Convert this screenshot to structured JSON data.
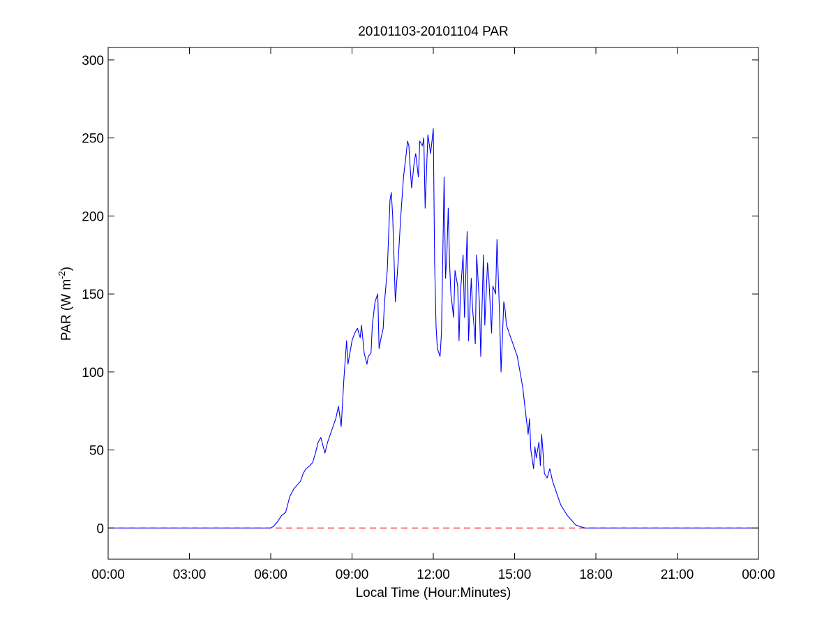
{
  "chart_data": {
    "type": "line",
    "title": "20101103-20101104 PAR",
    "xlabel": "Local Time (Hour:Minutes)",
    "ylabel_main": "PAR (W m",
    "ylabel_sup": "-2",
    "ylabel_close": ")",
    "xlim": [
      0,
      24
    ],
    "ylim": [
      -20,
      308
    ],
    "grid": false,
    "x_ticks": [
      0,
      3,
      6,
      9,
      12,
      15,
      18,
      21,
      24
    ],
    "x_tick_labels": [
      "00:00",
      "03:00",
      "06:00",
      "09:00",
      "12:00",
      "15:00",
      "18:00",
      "21:00",
      "00:00"
    ],
    "y_ticks": [
      0,
      50,
      100,
      150,
      200,
      250,
      300
    ],
    "y_tick_labels": [
      "0",
      "50",
      "100",
      "150",
      "200",
      "250",
      "300"
    ],
    "series": [
      {
        "color": "#0000ff",
        "style": "solid",
        "x": [
          0,
          6.0,
          6.1,
          6.25,
          6.4,
          6.55,
          6.7,
          6.85,
          7.0,
          7.1,
          7.2,
          7.3,
          7.45,
          7.55,
          7.65,
          7.75,
          7.85,
          8.0,
          8.1,
          8.2,
          8.3,
          8.4,
          8.5,
          8.6,
          8.7,
          8.8,
          8.85,
          8.9,
          8.95,
          9.0,
          9.1,
          9.2,
          9.3,
          9.35,
          9.45,
          9.55,
          9.6,
          9.7,
          9.75,
          9.85,
          9.95,
          10.0,
          10.05,
          10.15,
          10.2,
          10.3,
          10.4,
          10.45,
          10.5,
          10.6,
          10.7,
          10.8,
          10.9,
          11.0,
          11.05,
          11.1,
          11.15,
          11.2,
          11.3,
          11.35,
          11.45,
          11.5,
          11.6,
          11.65,
          11.7,
          11.8,
          11.9,
          11.95,
          12.0,
          12.05,
          12.1,
          12.15,
          12.25,
          12.3,
          12.4,
          12.45,
          12.5,
          12.55,
          12.6,
          12.65,
          12.75,
          12.8,
          12.9,
          12.95,
          13.0,
          13.1,
          13.15,
          13.25,
          13.3,
          13.4,
          13.45,
          13.5,
          13.55,
          13.6,
          13.7,
          13.75,
          13.85,
          13.9,
          14.0,
          14.05,
          14.15,
          14.2,
          14.3,
          14.35,
          14.45,
          14.5,
          14.6,
          14.65,
          14.7,
          14.8,
          14.9,
          15.0,
          15.1,
          15.2,
          15.3,
          15.4,
          15.5,
          15.55,
          15.6,
          15.7,
          15.75,
          15.8,
          15.9,
          15.95,
          16.0,
          16.05,
          16.1,
          16.2,
          16.3,
          16.4,
          16.5,
          16.6,
          16.7,
          16.8,
          16.95,
          17.1,
          17.25,
          17.4,
          17.6,
          18.0,
          24.0
        ],
        "y": [
          0,
          0,
          1,
          4,
          8,
          10,
          20,
          25,
          28,
          30,
          35,
          38,
          40,
          42,
          48,
          55,
          58,
          48,
          55,
          60,
          65,
          70,
          78,
          65,
          95,
          120,
          105,
          110,
          115,
          120,
          125,
          128,
          122,
          130,
          112,
          105,
          110,
          112,
          130,
          145,
          150,
          115,
          120,
          128,
          145,
          165,
          210,
          215,
          200,
          145,
          170,
          200,
          225,
          240,
          248,
          245,
          230,
          218,
          235,
          240,
          225,
          248,
          245,
          250,
          205,
          252,
          240,
          248,
          256,
          170,
          130,
          115,
          110,
          125,
          225,
          160,
          175,
          205,
          170,
          150,
          135,
          165,
          155,
          120,
          150,
          175,
          135,
          190,
          120,
          160,
          140,
          130,
          118,
          175,
          145,
          110,
          175,
          130,
          170,
          160,
          125,
          155,
          150,
          185,
          135,
          100,
          145,
          140,
          130,
          125,
          120,
          115,
          110,
          100,
          90,
          75,
          60,
          70,
          50,
          38,
          52,
          45,
          55,
          40,
          60,
          48,
          35,
          32,
          38,
          30,
          25,
          20,
          15,
          12,
          8,
          5,
          2,
          1,
          0,
          0,
          0
        ]
      },
      {
        "color": "#ff0000",
        "style": "dashed",
        "x": [
          0,
          24
        ],
        "y": [
          0,
          0
        ]
      }
    ]
  }
}
